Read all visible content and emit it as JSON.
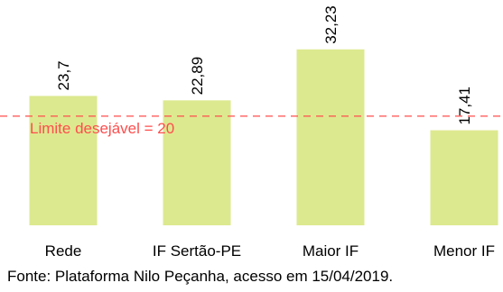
{
  "chart_data": {
    "type": "bar",
    "categories": [
      "Rede",
      "IF Sertão-PE",
      "Maior IF",
      "Menor IF"
    ],
    "values": [
      23.7,
      22.89,
      32.23,
      17.41
    ],
    "value_labels": [
      "23,7",
      "22,89",
      "32,23",
      "17,41"
    ],
    "title": "",
    "xlabel": "",
    "ylabel": "",
    "ylim": [
      0,
      35
    ],
    "grid": false,
    "reference_line": {
      "value": 20,
      "label": "Limite desejável = 20",
      "color": "#ff4d4d",
      "style": "dashed"
    },
    "bar_color": "#dde98f",
    "source": "Fonte: Plataforma Nilo Peçanha, acesso em 15/04/2019."
  }
}
